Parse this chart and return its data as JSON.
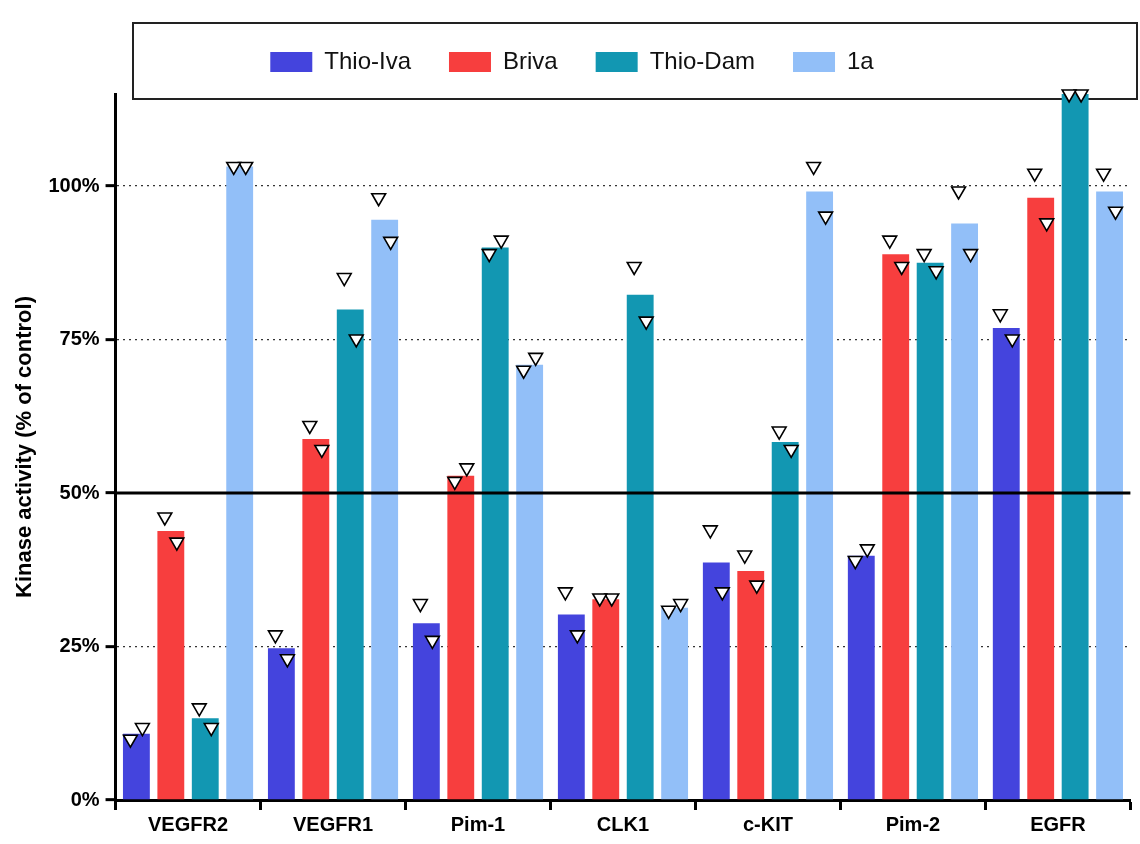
{
  "chart_data": {
    "type": "bar",
    "ylabel": "Kinase activity (% of control)",
    "categories": [
      "VEGFR2",
      "VEGFR1",
      "Pim-1",
      "CLK1",
      "c-KIT",
      "Pim-2",
      "EGFR"
    ],
    "series": [
      {
        "name": "Thio-Iva",
        "color": "#4444dd",
        "values": [
          10.8,
          24.7,
          28.8,
          30.2,
          38.7,
          39.8,
          76.9
        ]
      },
      {
        "name": "Briva",
        "color": "#f73e3e",
        "values": [
          43.8,
          58.8,
          52.8,
          32.7,
          37.3,
          88.9,
          98.1
        ]
      },
      {
        "name": "Thio-Dam",
        "color": "#1297b2",
        "values": [
          13.3,
          79.9,
          90.0,
          82.3,
          58.3,
          87.5,
          115.0
        ]
      },
      {
        "name": "1a",
        "color": "#92bff8",
        "values": [
          103.2,
          94.5,
          70.9,
          31.3,
          99.1,
          93.9,
          99.1
        ]
      },
      {
        "type": "scatter",
        "color": "#ffffff",
        "x": [
          "VEGFR2",
          "VEGFR1",
          "Pim-1",
          "CLK1",
          "c-KIT",
          "Pim-2",
          "EGFR"
        ],
        "values": [
          9.9,
          26.9,
          32.0,
          33.9,
          44.0,
          39.0,
          79.2
        ]
      },
      {
        "type": "scatter",
        "color": "#ffffff",
        "x": [
          "VEGFR2",
          "VEGFR1",
          "Pim-1",
          "CLK1",
          "c-KIT",
          "Pim-2",
          "EGFR"
        ],
        "values": [
          46.1,
          61.0,
          51.9,
          32.9,
          39.9,
          91.2,
          102.1
        ]
      },
      {
        "type": "scatter",
        "color": "#ffffff",
        "x": [
          "VEGFR2",
          "VEGFR1",
          "Pim-1",
          "CLK1",
          "c-KIT",
          "Pim-2",
          "EGFR"
        ],
        "values": [
          15.0,
          85.1,
          89.0,
          86.9,
          60.1,
          89.0,
          115.0
        ]
      },
      {
        "type": "scatter",
        "color": "#ffffff",
        "x": [
          "VEGFR2",
          "VEGFR1",
          "Pim-1",
          "CLK1",
          "c-KIT",
          "Pim-2",
          "EGFR"
        ],
        "values": [
          103.2,
          98.1,
          70.0,
          30.9,
          103.2,
          99.2,
          102.1
        ]
      },
      {
        "type": "scatter",
        "color": "#ffffff",
        "x": [
          "VEGFR2",
          "VEGFR1",
          "Pim-1",
          "CLK1",
          "c-KIT",
          "Pim-2",
          "EGFR"
        ],
        "values": [
          11.8,
          23.0,
          26.0,
          26.9,
          33.9,
          40.9,
          75.1
        ]
      },
      {
        "type": "scatter",
        "color": "#ffffff",
        "x": [
          "VEGFR2",
          "VEGFR1",
          "Pim-1",
          "CLK1",
          "c-KIT",
          "Pim-2",
          "EGFR"
        ],
        "values": [
          42.0,
          57.1,
          54.1,
          32.9,
          35.0,
          86.9,
          94.0
        ]
      },
      {
        "type": "scatter",
        "color": "#ffffff",
        "x": [
          "VEGFR2",
          "VEGFR1",
          "Pim-1",
          "CLK1",
          "c-KIT",
          "Pim-2",
          "EGFR"
        ],
        "values": [
          11.8,
          75.1,
          91.2,
          78.0,
          57.1,
          86.2,
          115.0
        ]
      },
      {
        "type": "scatter",
        "color": "#ffffff",
        "x": [
          "VEGFR2",
          "VEGFR1",
          "Pim-1",
          "CLK1",
          "c-KIT",
          "Pim-2",
          "EGFR"
        ],
        "values": [
          103.2,
          91.0,
          72.1,
          32.0,
          95.1,
          89.0,
          95.9
        ]
      }
    ],
    "ylim": [
      0,
      115
    ],
    "yticks": [
      {
        "value": 0,
        "label": "0%"
      },
      {
        "value": 25,
        "label": "25%"
      },
      {
        "value": 50,
        "label": "50%"
      },
      {
        "value": 75,
        "label": "75%"
      },
      {
        "value": 100,
        "label": "100%"
      }
    ],
    "ref_lines": [
      {
        "axis": "y",
        "value": 50,
        "color": "#000000"
      }
    ],
    "grid": "y",
    "legend": "top",
    "marker": "triangle"
  }
}
